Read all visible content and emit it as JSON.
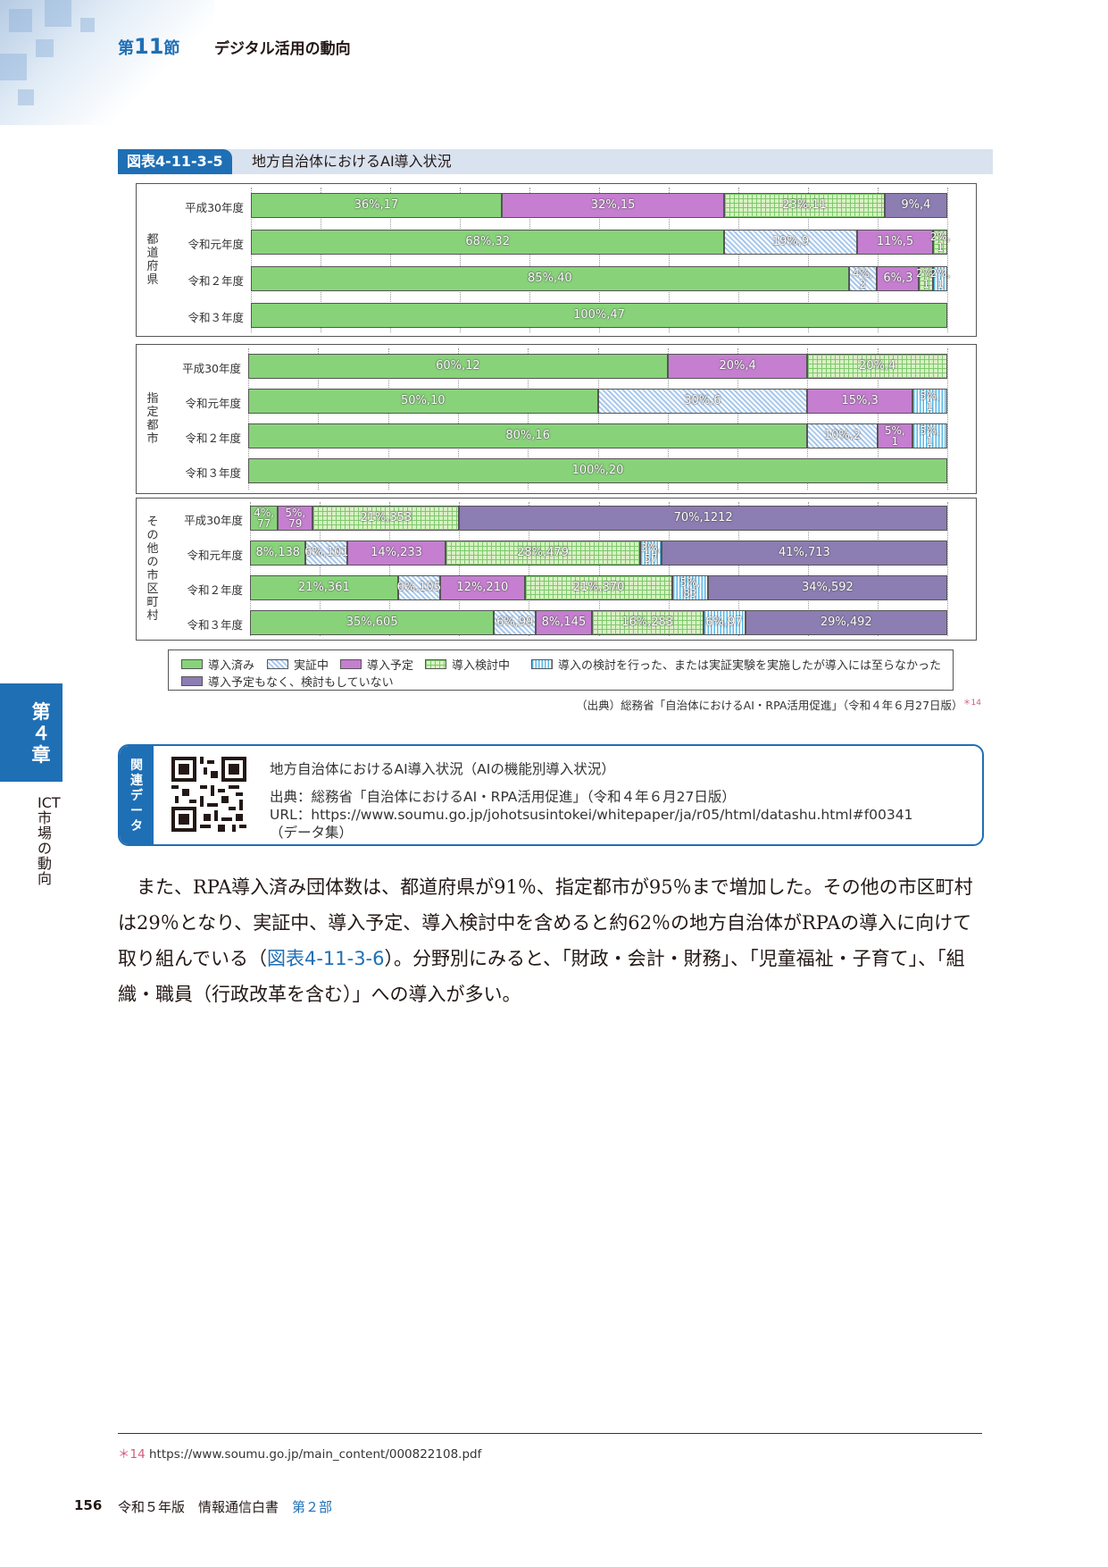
{
  "header": {
    "section_prefix": "第",
    "section_num": "11",
    "section_suffix": "節",
    "title": "デジタル活用の動向"
  },
  "figure": {
    "label": "図表4-11-3-5",
    "title": "地方自治体におけるAI導入状況"
  },
  "chart_data": {
    "type": "bar",
    "orientation": "horizontal-stacked-100",
    "series_names": [
      "導入済み",
      "実証中",
      "導入予定",
      "導入検討中",
      "導入の検討を行った、または実証実験を実施したが導入には至らなかった",
      "導入予定もなく、検討もしていない"
    ],
    "groups": [
      {
        "name": "都道府県",
        "rows": [
          {
            "label": "平成30年度",
            "segments": [
              {
                "series": "導入済み",
                "value": 36,
                "count": 17,
                "text": "36%,17"
              },
              {
                "series": "導入予定",
                "value": 32,
                "count": 15,
                "text": "32%,15"
              },
              {
                "series": "導入検討中",
                "value": 23,
                "count": 11,
                "text": "23%,11"
              },
              {
                "series": "導入予定もなく、検討もしていない",
                "value": 9,
                "count": 4,
                "text": "9%,4"
              }
            ]
          },
          {
            "label": "令和元年度",
            "segments": [
              {
                "series": "導入済み",
                "value": 68,
                "count": 32,
                "text": "68%,32"
              },
              {
                "series": "実証中",
                "value": 19,
                "count": 9,
                "text": "19%,9"
              },
              {
                "series": "導入予定",
                "value": 11,
                "count": 5,
                "text": "11%,5"
              },
              {
                "series": "導入検討中",
                "value": 2,
                "count": 1,
                "text": "2%,1"
              }
            ]
          },
          {
            "label": "令和２年度",
            "segments": [
              {
                "series": "導入済み",
                "value": 85,
                "count": 40,
                "text": "85%,40"
              },
              {
                "series": "実証中",
                "value": 4,
                "count": 2,
                "text": "4%,2"
              },
              {
                "series": "導入予定",
                "value": 6,
                "count": 3,
                "text": "6%,3"
              },
              {
                "series": "導入検討中",
                "value": 2,
                "count": 1,
                "text": "2%,1"
              },
              {
                "series": "導入の検討を行った、または実証実験を実施したが導入には至らなかった",
                "value": 2,
                "count": 1,
                "text": "2%,1"
              }
            ]
          },
          {
            "label": "令和３年度",
            "segments": [
              {
                "series": "導入済み",
                "value": 100,
                "count": 47,
                "text": "100%,47"
              }
            ]
          }
        ]
      },
      {
        "name": "指定都市",
        "rows": [
          {
            "label": "平成30年度",
            "segments": [
              {
                "series": "導入済み",
                "value": 60,
                "count": 12,
                "text": "60%,12"
              },
              {
                "series": "導入予定",
                "value": 20,
                "count": 4,
                "text": "20%,4"
              },
              {
                "series": "導入検討中",
                "value": 20,
                "count": 4,
                "text": "20%,4"
              }
            ]
          },
          {
            "label": "令和元年度",
            "segments": [
              {
                "series": "導入済み",
                "value": 50,
                "count": 10,
                "text": "50%,10"
              },
              {
                "series": "実証中",
                "value": 30,
                "count": 6,
                "text": "30%,6"
              },
              {
                "series": "導入予定",
                "value": 15,
                "count": 3,
                "text": "15%,3"
              },
              {
                "series": "導入の検討を行った、または実証実験を実施したが導入には至らなかった",
                "value": 5,
                "count": 1,
                "text": "5%,1"
              }
            ]
          },
          {
            "label": "令和２年度",
            "segments": [
              {
                "series": "導入済み",
                "value": 80,
                "count": 16,
                "text": "80%,16"
              },
              {
                "series": "実証中",
                "value": 10,
                "count": 2,
                "text": "10%,2"
              },
              {
                "series": "導入予定",
                "value": 5,
                "count": 1,
                "text": "5%,1"
              },
              {
                "series": "導入の検討を行った、または実証実験を実施したが導入には至らなかった",
                "value": 5,
                "count": 1,
                "text": "5%,1"
              }
            ]
          },
          {
            "label": "令和３年度",
            "segments": [
              {
                "series": "導入済み",
                "value": 100,
                "count": 20,
                "text": "100%,20"
              }
            ]
          }
        ]
      },
      {
        "name": "その他の市区町村",
        "rows": [
          {
            "label": "平成30年度",
            "segments": [
              {
                "series": "導入済み",
                "value": 4,
                "count": 77,
                "text": "4%,77"
              },
              {
                "series": "導入予定",
                "value": 5,
                "count": 79,
                "text": "5%,79"
              },
              {
                "series": "導入検討中",
                "value": 21,
                "count": 353,
                "text": "21%,353"
              },
              {
                "series": "導入予定もなく、検討もしていない",
                "value": 70,
                "count": 1212,
                "text": "70%,1212"
              }
            ]
          },
          {
            "label": "令和元年度",
            "segments": [
              {
                "series": "導入済み",
                "value": 8,
                "count": 138,
                "text": "8%,138"
              },
              {
                "series": "実証中",
                "value": 6,
                "count": 101,
                "text": "6%,101"
              },
              {
                "series": "導入予定",
                "value": 14,
                "count": 233,
                "text": "14%,233"
              },
              {
                "series": "導入検討中",
                "value": 28,
                "count": 479,
                "text": "28%,479"
              },
              {
                "series": "導入の検討を行った、または実証実験を実施したが導入には至らなかった",
                "value": 3,
                "count": 57,
                "text": "3%,57"
              },
              {
                "series": "導入予定もなく、検討もしていない",
                "value": 41,
                "count": 713,
                "text": "41%,713"
              }
            ]
          },
          {
            "label": "令和２年度",
            "segments": [
              {
                "series": "導入済み",
                "value": 21,
                "count": 361,
                "text": "21%,361"
              },
              {
                "series": "実証中",
                "value": 6,
                "count": 105,
                "text": "6%,105"
              },
              {
                "series": "導入予定",
                "value": 12,
                "count": 210,
                "text": "12%,210"
              },
              {
                "series": "導入検討中",
                "value": 21,
                "count": 370,
                "text": "21%,370"
              },
              {
                "series": "導入の検討を行った、または実証実験を実施したが導入には至らなかった",
                "value": 5,
                "count": 83,
                "text": "5%,83"
              },
              {
                "series": "導入予定もなく、検討もしていない",
                "value": 34,
                "count": 592,
                "text": "34%,592"
              }
            ]
          },
          {
            "label": "令和３年度",
            "segments": [
              {
                "series": "導入済み",
                "value": 35,
                "count": 605,
                "text": "35%,605"
              },
              {
                "series": "実証中",
                "value": 6,
                "count": 99,
                "text": "6%,99"
              },
              {
                "series": "導入予定",
                "value": 8,
                "count": 145,
                "text": "8%,145"
              },
              {
                "series": "導入検討中",
                "value": 16,
                "count": 283,
                "text": "16%,283"
              },
              {
                "series": "導入の検討を行った、または実証実験を実施したが導入には至らなかった",
                "value": 6,
                "count": 97,
                "text": "6%,97"
              },
              {
                "series": "導入予定もなく、検討もしていない",
                "value": 29,
                "count": 492,
                "text": "29%,492"
              }
            ]
          }
        ]
      }
    ],
    "xlim": [
      0,
      100
    ]
  },
  "legend": {
    "items": [
      {
        "label": "導入済み",
        "key": "done"
      },
      {
        "label": "実証中",
        "key": "poc"
      },
      {
        "label": "導入予定",
        "key": "plan"
      },
      {
        "label": "導入検討中",
        "key": "cons"
      },
      {
        "label": "導入の検討を行った、または実証実験を実施したが導入には至らなかった",
        "key": "noadopt"
      },
      {
        "label": "導入予定もなく、検討もしていない",
        "key": "none"
      }
    ]
  },
  "source": {
    "text": "（出典）総務省「自治体におけるAI・RPA活用促進」（令和４年６月27日版）",
    "mark": "＊14"
  },
  "related": {
    "tab": "関連データ",
    "title": "地方自治体におけるAI導入状況（AIの機能別導入状況）",
    "source": "出典：総務省「自治体におけるAI・RPA活用促進」（令和４年６月27日版）",
    "url": "URL：https://www.soumu.go.jp/johotsusintokei/whitepaper/ja/r05/html/datashu.html#f00341",
    "note": "（データ集）"
  },
  "chapter": {
    "tab": "第４章",
    "name": "ICT市場の動向"
  },
  "body": {
    "p1": "また、RPA導入済み団体数は、都道府県が91％、指定都市が95％まで増加した。その他の市区町村は29％となり、実証中、導入予定、導入検討中を含めると約62％の地方自治体がRPAの導入に向けて取り組んでいる（",
    "ref": "図表4-11-3-6",
    "p2": "）。分野別にみると、「財政・会計・財務」、「児童福祉・子育て」、「組織・職員（行政改革を含む）」への導入が多い。"
  },
  "footnote": {
    "mark": "＊14",
    "text": "https://www.soumu.go.jp/main_content/000822108.pdf"
  },
  "footer": {
    "page": "156",
    "publication": "令和５年版　情報通信白書",
    "part": "第２部"
  }
}
